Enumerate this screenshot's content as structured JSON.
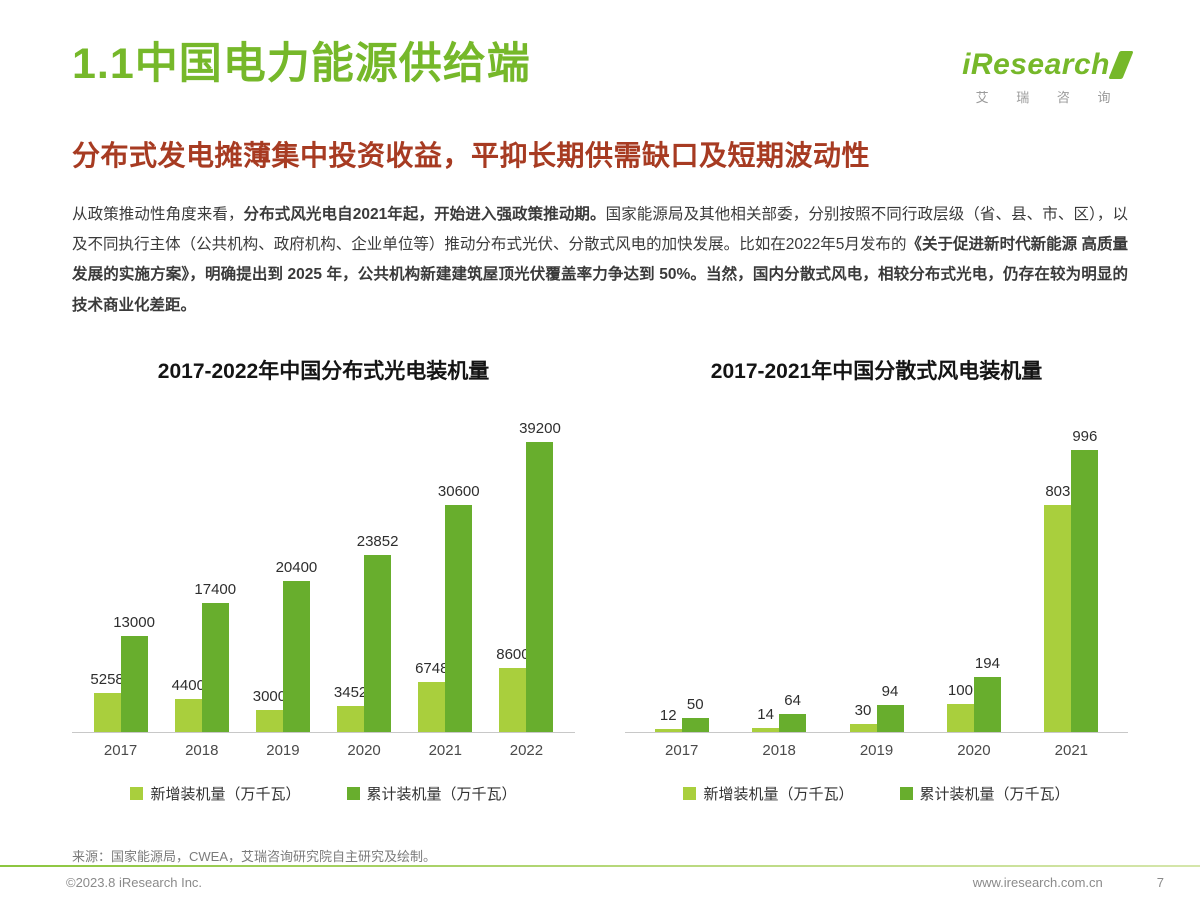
{
  "theme": {
    "green": "#76b82a",
    "subtitle_red": "#a73b22",
    "bar_light": "#a9cf3d",
    "bar_dark": "#68ae2d",
    "text_dark": "#333333",
    "text_gray": "#8a8a8a"
  },
  "logo": {
    "text": "iResearch",
    "subtext": "艾 瑞 咨 询"
  },
  "header": {
    "title": "1.1中国电力能源供给端",
    "subtitle": "分布式发电摊薄集中投资收益，平抑长期供需缺口及短期波动性"
  },
  "body_segments": [
    {
      "text": "从政策推动性角度来看，",
      "bold": false
    },
    {
      "text": "分布式风光电自2021年起，开始进入强政策推动期。",
      "bold": true
    },
    {
      "text": "国家能源局及其他相关部委，分别按照不同行政层级（省、县、市、区），以及不同执行主体（公共机构、政府机构、企业单位等）推动分布式光伏、分散式风电的加快发展。比如在2022年5月发布的",
      "bold": false
    },
    {
      "text": "《关于促进新时代新能源 高质量发展的实施方案》，明确提出到 2025 年，公共机构新建建筑屋顶光伏覆盖率力争达到 50%。",
      "bold": true
    },
    {
      "text": "当然，国内分散式风电，相较分布式光电，仍存在较为明显的技术商业化差距。",
      "bold": true
    }
  ],
  "chart_data": [
    {
      "type": "bar",
      "title": "2017-2022年中国分布式光电装机量",
      "categories": [
        "2017",
        "2018",
        "2019",
        "2020",
        "2021",
        "2022"
      ],
      "series": [
        {
          "name": "新增装机量（万千瓦）",
          "color": "#a9cf3d",
          "values": [
            5258,
            4400,
            3000,
            3452,
            6748,
            8600
          ]
        },
        {
          "name": "累计装机量（万千瓦）",
          "color": "#68ae2d",
          "values": [
            13000,
            17400,
            20400,
            23852,
            30600,
            39200
          ]
        }
      ],
      "xlabel": "",
      "ylabel": "",
      "ylim": [
        0,
        42000
      ],
      "grid": false,
      "legend_position": "bottom"
    },
    {
      "type": "bar",
      "title": "2017-2021年中国分散式风电装机量",
      "categories": [
        "2017",
        "2018",
        "2019",
        "2020",
        "2021"
      ],
      "series": [
        {
          "name": "新增装机量（万千瓦）",
          "color": "#a9cf3d",
          "values": [
            12,
            14,
            30,
            100,
            803
          ]
        },
        {
          "name": "累计装机量（万千瓦）",
          "color": "#68ae2d",
          "values": [
            50,
            64,
            94,
            194,
            996
          ]
        }
      ],
      "xlabel": "",
      "ylabel": "",
      "ylim": [
        0,
        1100
      ],
      "grid": false,
      "legend_position": "bottom"
    }
  ],
  "source_note": "来源：国家能源局，CWEA，艾瑞咨询研究院自主研究及绘制。",
  "footer": {
    "copyright": "©2023.8 iResearch Inc.",
    "website": "www.iresearch.com.cn",
    "page_number": "7"
  }
}
